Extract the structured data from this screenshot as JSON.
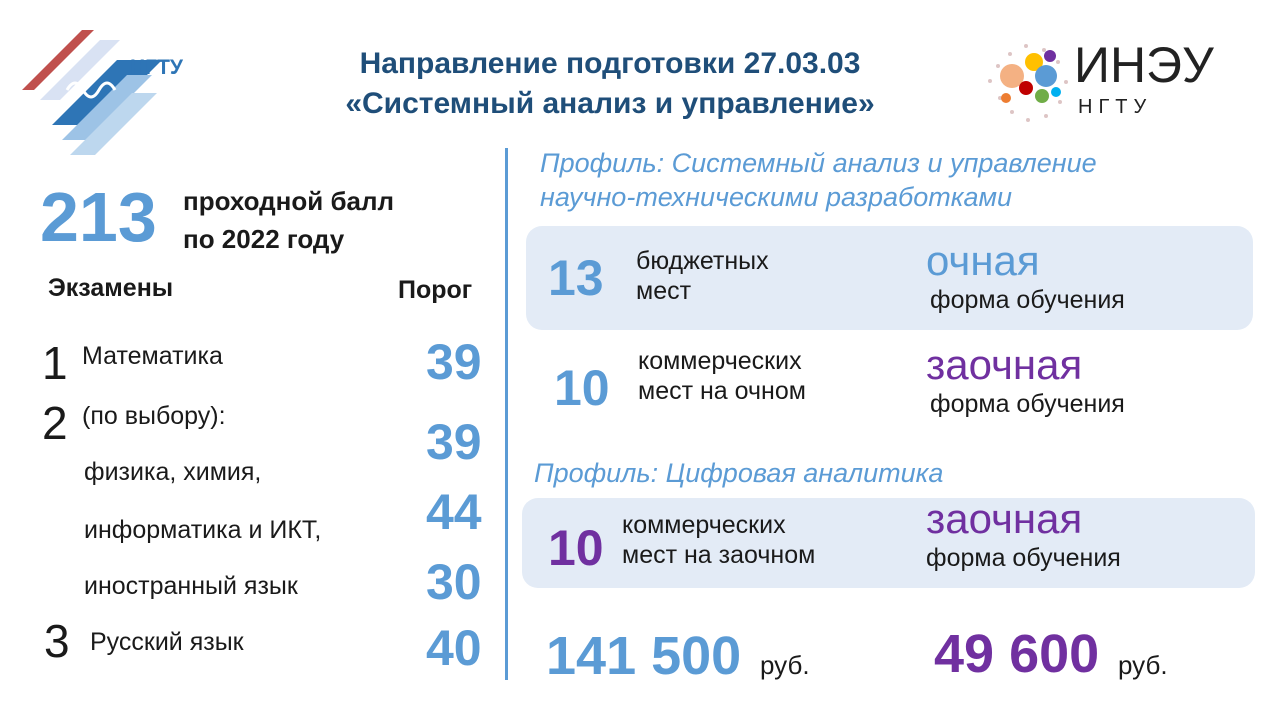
{
  "header": {
    "title_line1": "Направление подготовки 27.03.03",
    "title_line2": "«Системный анализ и управление»"
  },
  "logos": {
    "left_text": "НГТУ",
    "right_text_main": "ИНЭУ",
    "right_text_sub": "НГТУ"
  },
  "score": {
    "value": "213",
    "line1": "проходной балл",
    "line2": "по 2022 году"
  },
  "exams": {
    "heading": "Экзамены",
    "threshold_heading": "Порог",
    "items": [
      {
        "num": "1",
        "label": "Математика"
      },
      {
        "num": "2",
        "label": "(по выбору):"
      },
      {
        "num": "3",
        "label": "Русский язык"
      }
    ],
    "choice_lines": [
      "физика, химия,",
      "информатика и ИКТ,",
      "иностранный язык"
    ],
    "thresholds": [
      "39",
      "39",
      "44",
      "30",
      "40"
    ]
  },
  "profile1": {
    "title_line1": "Профиль: Системный анализ и управление",
    "title_line2": "научно-техническими разработками",
    "budget": {
      "num": "13",
      "line1": "бюджетных",
      "line2": "мест",
      "form": "очная",
      "form_sub": "форма обучения"
    },
    "commercial": {
      "num": "10",
      "line1": "коммерческих",
      "line2": "мест на очном",
      "form": "заочная",
      "form_sub": "форма обучения"
    }
  },
  "profile2": {
    "title": "Профиль: Цифровая аналитика",
    "commercial": {
      "num": "10",
      "line1": "коммерческих",
      "line2": "мест на заочном",
      "form": "заочная",
      "form_sub": "форма обучения"
    }
  },
  "prices": [
    {
      "value": "141 500",
      "unit": "руб."
    },
    {
      "value": "49 600",
      "unit": "руб."
    }
  ],
  "colors": {
    "blue": "#5b9bd5",
    "navy": "#1f4e79",
    "purple": "#7030a0",
    "panel": "#e3ebf6"
  }
}
